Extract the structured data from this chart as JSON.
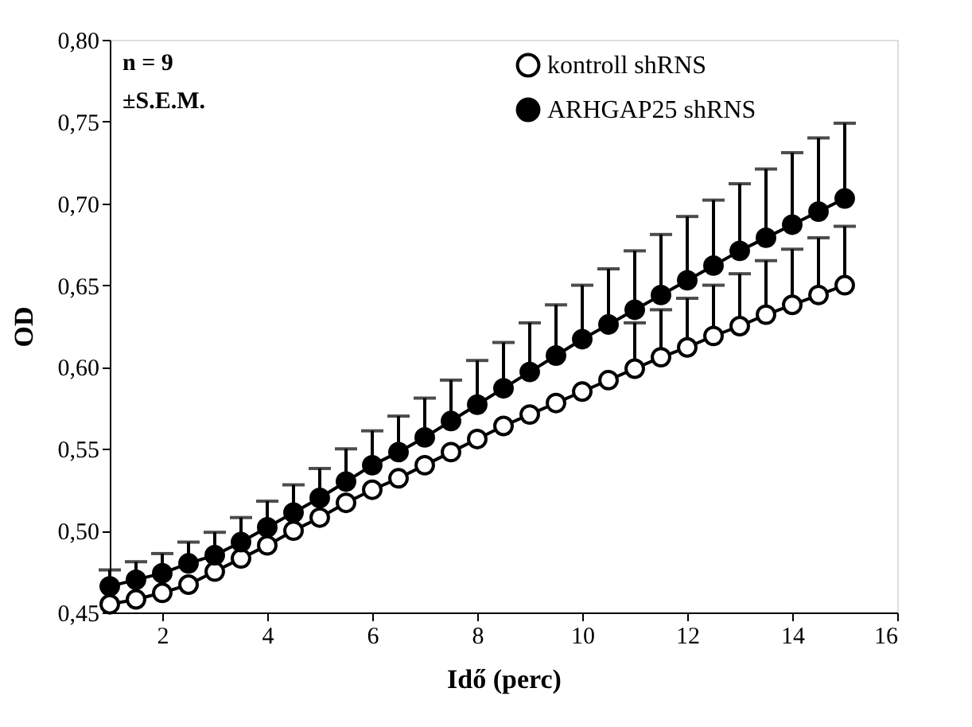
{
  "chart_data": {
    "type": "line",
    "xlabel": "Idő (perc)",
    "ylabel": "OD",
    "x": [
      1,
      1.5,
      2,
      2.5,
      3,
      3.5,
      4,
      4.5,
      5,
      5.5,
      6,
      6.5,
      7,
      7.5,
      8,
      8.5,
      9,
      9.5,
      10,
      10.5,
      11,
      11.5,
      12,
      12.5,
      13,
      13.5,
      14,
      14.5,
      15
    ],
    "series": [
      {
        "name": "kontroll shRNS",
        "color": "#ffffff",
        "values": [
          0.455,
          0.458,
          0.462,
          0.467,
          0.475,
          0.483,
          0.491,
          0.5,
          0.508,
          0.517,
          0.525,
          0.532,
          0.54,
          0.548,
          0.556,
          0.564,
          0.571,
          0.578,
          0.585,
          0.592,
          0.599,
          0.606,
          0.612,
          0.619,
          0.625,
          0.632,
          0.638,
          0.644,
          0.65
        ],
        "errors": [
          null,
          null,
          null,
          null,
          null,
          null,
          null,
          null,
          null,
          null,
          null,
          null,
          null,
          null,
          null,
          null,
          null,
          null,
          null,
          null,
          [
            0.599,
            0.627
          ],
          [
            0.606,
            0.635
          ],
          [
            0.612,
            0.642
          ],
          [
            0.619,
            0.65
          ],
          [
            0.625,
            0.657
          ],
          [
            0.632,
            0.665
          ],
          [
            0.638,
            0.672
          ],
          [
            0.644,
            0.679
          ],
          [
            0.65,
            0.686
          ]
        ]
      },
      {
        "name": "ARHGAP25 shRNS",
        "color": "#000000",
        "values": [
          0.466,
          0.47,
          0.474,
          0.48,
          0.485,
          0.493,
          0.502,
          0.511,
          0.52,
          0.53,
          0.54,
          0.548,
          0.557,
          0.567,
          0.577,
          0.587,
          0.597,
          0.607,
          0.617,
          0.626,
          0.635,
          0.644,
          0.653,
          0.662,
          0.671,
          0.679,
          0.687,
          0.695,
          0.703
        ],
        "errors": [
          [
            0.466,
            0.476
          ],
          [
            0.47,
            0.481
          ],
          [
            0.474,
            0.486
          ],
          [
            0.48,
            0.493
          ],
          [
            0.485,
            0.499
          ],
          [
            0.493,
            0.508
          ],
          [
            0.502,
            0.518
          ],
          [
            0.511,
            0.528
          ],
          [
            0.52,
            0.538
          ],
          [
            0.53,
            0.55
          ],
          [
            0.54,
            0.561
          ],
          [
            0.548,
            0.57
          ],
          [
            0.557,
            0.581
          ],
          [
            0.567,
            0.592
          ],
          [
            0.577,
            0.604
          ],
          [
            0.587,
            0.615
          ],
          [
            0.597,
            0.627
          ],
          [
            0.607,
            0.638
          ],
          [
            0.617,
            0.65
          ],
          [
            0.626,
            0.66
          ],
          [
            0.635,
            0.671
          ],
          [
            0.644,
            0.681
          ],
          [
            0.653,
            0.692
          ],
          [
            0.662,
            0.702
          ],
          [
            0.671,
            0.712
          ],
          [
            0.679,
            0.721
          ],
          [
            0.687,
            0.731
          ],
          [
            0.695,
            0.74
          ],
          [
            0.703,
            0.749
          ]
        ]
      }
    ],
    "xlim": [
      1,
      16
    ],
    "xticks": [
      2,
      4,
      6,
      8,
      10,
      12,
      14,
      16
    ],
    "ylim": [
      0.45,
      0.8
    ],
    "yticks": [
      {
        "value": 0.45,
        "label": "0,45"
      },
      {
        "value": 0.5,
        "label": "0,50"
      },
      {
        "value": 0.55,
        "label": "0,55"
      },
      {
        "value": 0.6,
        "label": "0,60"
      },
      {
        "value": 0.65,
        "label": "0,65"
      },
      {
        "value": 0.7,
        "label": "0,70"
      },
      {
        "value": 0.75,
        "label": "0,75"
      },
      {
        "value": 0.8,
        "label": "0,80"
      }
    ],
    "annotations": [
      "n = 9",
      "±S.E.M."
    ],
    "marker": "circle",
    "line_style": "solid",
    "grid": false,
    "legend": "top right"
  }
}
